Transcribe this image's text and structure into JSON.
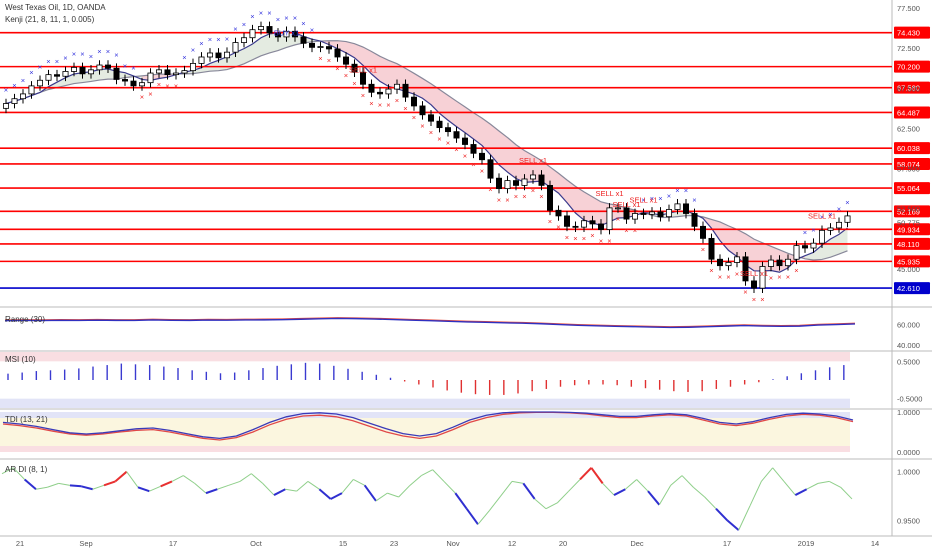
{
  "header": {
    "title": "West Texas Oil, 1D, OANDA",
    "indicator": "Kenji (21, 8, 11, 1, 0.005)"
  },
  "colors": {
    "up": "#ffffff",
    "down": "#000000",
    "hline": "#ff0000",
    "support_line": "#0000cc",
    "buy_marker": "#3333dd",
    "sell_marker": "#ee2222",
    "cloud_bear": "#f6c9cf",
    "cloud_bull": "#dfe8dc",
    "fast_ma": "#3a3a8c",
    "slow_ma": "#88889a"
  },
  "chart_data": [
    {
      "type": "candlestick",
      "title": "West Texas Oil, 1D, OANDA",
      "price_scale": {
        "labels": [
          "77.500",
          "72.500",
          "67.500",
          "62.500",
          "57.500",
          "52.500",
          "50.775",
          "45.000"
        ],
        "range": [
          40.5,
          78.5
        ]
      },
      "horizontal_levels": [
        {
          "value": 74.43,
          "label": "74.430",
          "color": "#ff0000"
        },
        {
          "value": 70.2,
          "label": "70.200",
          "color": "#ff0000"
        },
        {
          "value": 67.58,
          "label": "67.580",
          "color": "#ff0000"
        },
        {
          "value": 64.487,
          "label": "64.487",
          "color": "#ff0000"
        },
        {
          "value": 60.038,
          "label": "60.038",
          "color": "#ff0000"
        },
        {
          "value": 58.074,
          "label": "58.074",
          "color": "#ff0000"
        },
        {
          "value": 55.064,
          "label": "55.064",
          "color": "#ff0000"
        },
        {
          "value": 52.169,
          "label": "52.169",
          "color": "#ff0000"
        },
        {
          "value": 49.934,
          "label": "49.934",
          "color": "#ff0000"
        },
        {
          "value": 48.11,
          "label": "48.110",
          "color": "#ff0000"
        },
        {
          "value": 45.935,
          "label": "45.935",
          "color": "#ff0000"
        },
        {
          "value": 42.61,
          "label": "42.610",
          "color": "#0000cc"
        }
      ],
      "x_labels": [
        "21",
        "Sep",
        "17",
        "Oct",
        "15",
        "23",
        "Nov",
        "12",
        "20",
        "Dec",
        "17",
        "2019",
        "14"
      ],
      "close": [
        65.6,
        66.2,
        66.8,
        67.8,
        68.5,
        69.2,
        69.0,
        69.6,
        70.1,
        69.3,
        69.8,
        70.4,
        70.0,
        68.6,
        68.4,
        67.8,
        68.2,
        69.4,
        69.8,
        69.2,
        69.4,
        69.7,
        70.6,
        71.4,
        71.9,
        71.3,
        72.0,
        73.2,
        73.8,
        74.8,
        75.2,
        74.4,
        73.9,
        74.6,
        73.9,
        73.1,
        72.6,
        72.7,
        72.4,
        71.4,
        70.5,
        69.5,
        68.0,
        67.0,
        66.8,
        67.4,
        68.0,
        66.4,
        65.3,
        64.2,
        63.4,
        62.6,
        62.1,
        61.3,
        60.5,
        59.4,
        58.6,
        56.3,
        55.0,
        56.0,
        55.4,
        56.2,
        56.7,
        55.4,
        52.3,
        51.6,
        50.3,
        50.2,
        51.0,
        50.6,
        49.9,
        52.6,
        52.6,
        51.2,
        51.9,
        51.8,
        52.1,
        51.5,
        52.4,
        53.1,
        51.9,
        50.3,
        48.8,
        46.2,
        45.4,
        45.8,
        46.5,
        43.5,
        42.6,
        45.3,
        46.1,
        45.4,
        46.2,
        47.9,
        47.6,
        48.2,
        49.8,
        50.1,
        50.8,
        51.6
      ],
      "signals": [
        {
          "label": "BUY x1",
          "type": "buy"
        },
        {
          "label": "SELL x1",
          "type": "sell"
        },
        {
          "label": "SELL x1",
          "type": "sell"
        },
        {
          "label": "SELL x1",
          "type": "sell"
        },
        {
          "label": "SELL x1",
          "type": "sell"
        },
        {
          "label": "SELL x1",
          "type": "sell"
        },
        {
          "label": "SELL x1",
          "type": "sell"
        },
        {
          "label": "SELL x1",
          "type": "sell"
        }
      ]
    },
    {
      "type": "line",
      "title": "Range (30)",
      "scale_labels": [
        "60.000",
        "40.000"
      ],
      "series": [
        {
          "name": "",
          "color": "#e74c3c",
          "values": [
            64.2,
            64.4,
            64.3,
            64.6,
            64.4,
            64.7,
            64.5,
            64.4,
            64.9,
            64.6,
            64.5,
            64.8,
            64.7,
            64.9,
            65.0,
            65.2,
            65.6,
            66.0,
            66.4,
            66.2,
            65.8,
            65.3,
            64.7,
            64.2,
            63.6,
            63.0,
            62.6,
            62.1,
            61.8,
            61.2,
            60.4,
            59.7,
            59.2,
            58.7,
            58.4,
            58.0,
            57.6,
            57.8,
            58.3,
            58.9,
            59.4,
            59.0,
            58.7,
            58.9,
            59.9,
            60.4,
            61.0
          ]
        },
        {
          "name": "",
          "color": "#3030c0",
          "values": [
            63.6,
            63.8,
            63.7,
            64.0,
            63.8,
            64.1,
            63.9,
            63.8,
            64.3,
            64.0,
            63.9,
            64.2,
            64.1,
            64.3,
            64.4,
            64.6,
            65.0,
            65.4,
            65.8,
            65.6,
            65.2,
            64.7,
            64.1,
            63.6,
            63.0,
            62.4,
            62.0,
            61.5,
            61.2,
            60.6,
            59.8,
            59.1,
            58.6,
            58.1,
            57.8,
            57.4,
            57.0,
            57.2,
            57.7,
            58.3,
            58.8,
            58.4,
            58.1,
            58.3,
            59.3,
            59.8,
            60.4
          ]
        }
      ]
    },
    {
      "type": "bar",
      "title": "MSI (10)",
      "scale_labels": [
        "0.5000",
        "-0.5000"
      ],
      "values": [
        0.17,
        0.2,
        0.24,
        0.26,
        0.28,
        0.31,
        0.36,
        0.4,
        0.44,
        0.42,
        0.4,
        0.36,
        0.32,
        0.26,
        0.22,
        0.18,
        0.2,
        0.26,
        0.32,
        0.38,
        0.42,
        0.46,
        0.44,
        0.38,
        0.3,
        0.22,
        0.14,
        0.06,
        -0.04,
        -0.12,
        -0.2,
        -0.28,
        -0.34,
        -0.38,
        -0.4,
        -0.4,
        -0.36,
        -0.3,
        -0.24,
        -0.18,
        -0.14,
        -0.12,
        -0.12,
        -0.14,
        -0.18,
        -0.22,
        -0.26,
        -0.3,
        -0.32,
        -0.3,
        -0.24,
        -0.18,
        -0.12,
        -0.06,
        0.02,
        0.1,
        0.18,
        0.26,
        0.34,
        0.4
      ]
    },
    {
      "type": "line",
      "title": "TDI (13, 21)",
      "scale_labels": [
        "1.0000",
        "0.0000"
      ],
      "series": [
        {
          "name": "",
          "color": "#e04848",
          "values": [
            0.7,
            0.66,
            0.6,
            0.52,
            0.45,
            0.42,
            0.45,
            0.5,
            0.54,
            0.56,
            0.5,
            0.42,
            0.34,
            0.3,
            0.36,
            0.5,
            0.68,
            0.82,
            0.9,
            0.92,
            0.88,
            0.78,
            0.64,
            0.5,
            0.4,
            0.34,
            0.4,
            0.56,
            0.74,
            0.86,
            0.94,
            0.98,
            0.99,
            0.99,
            0.98,
            0.95,
            0.9,
            0.86,
            0.86,
            0.9,
            0.93,
            0.9,
            0.8,
            0.7,
            0.66,
            0.72,
            0.82,
            0.9,
            0.94,
            0.92,
            0.86,
            0.76
          ]
        },
        {
          "name": "",
          "color": "#3a3ab8",
          "values": [
            0.74,
            0.7,
            0.64,
            0.56,
            0.48,
            0.45,
            0.48,
            0.53,
            0.58,
            0.6,
            0.54,
            0.46,
            0.38,
            0.34,
            0.4,
            0.56,
            0.74,
            0.88,
            0.96,
            0.98,
            0.95,
            0.86,
            0.72,
            0.58,
            0.46,
            0.4,
            0.46,
            0.62,
            0.8,
            0.92,
            0.98,
            1.0,
            1.0,
            1.0,
            0.99,
            0.97,
            0.93,
            0.89,
            0.89,
            0.93,
            0.96,
            0.93,
            0.84,
            0.74,
            0.7,
            0.76,
            0.86,
            0.94,
            0.97,
            0.95,
            0.9,
            0.8
          ]
        }
      ]
    },
    {
      "type": "line",
      "title": "AR DI (8, 1)",
      "scale_labels": [
        "1.0000",
        "0.9500"
      ],
      "values": [
        0.998,
        1.004,
        0.992,
        0.982,
        0.984,
        0.988,
        0.986,
        0.985,
        0.982,
        0.986,
        0.99,
        1.0,
        0.984,
        0.98,
        0.985,
        0.99,
        0.996,
        0.988,
        0.978,
        0.982,
        0.986,
        0.99,
        0.998,
        0.988,
        0.976,
        0.982,
        0.98,
        0.99,
        0.982,
        0.972,
        0.978,
        0.992,
        0.986,
        0.97,
        0.978,
        0.974,
        0.986,
        0.996,
        1.002,
        0.99,
        0.978,
        0.962,
        0.946,
        0.96,
        0.975,
        0.99,
        0.988,
        0.972,
        0.962,
        0.968,
        0.98,
        0.992,
        1.004,
        0.988,
        0.976,
        0.982,
        0.992,
        0.98,
        0.966,
        0.986,
        0.996,
        0.984,
        0.974,
        0.962,
        0.95,
        0.94,
        0.965,
        0.99,
        1.004,
        0.99,
        0.976,
        0.982,
        0.988,
        0.99,
        0.984,
        0.972
      ],
      "segment_colors": [
        "green",
        "green",
        "blue",
        "green",
        "green",
        "green",
        "blue",
        "blue",
        "green",
        "red",
        "red",
        "green",
        "blue",
        "green",
        "red",
        "green",
        "green",
        "green",
        "blue",
        "green",
        "green",
        "green",
        "green",
        "green",
        "blue",
        "green",
        "green",
        "green",
        "blue",
        "blue",
        "green",
        "green",
        "blue",
        "green",
        "green",
        "green",
        "green",
        "green",
        "green",
        "green",
        "blue",
        "blue",
        "green",
        "green",
        "green",
        "green",
        "blue",
        "green",
        "green",
        "green",
        "green",
        "red",
        "red",
        "green",
        "blue",
        "green",
        "green",
        "blue",
        "green",
        "green",
        "green",
        "green",
        "green",
        "blue",
        "blue",
        "green",
        "green",
        "green",
        "green",
        "green",
        "blue",
        "green",
        "green",
        "green",
        "green"
      ]
    }
  ]
}
